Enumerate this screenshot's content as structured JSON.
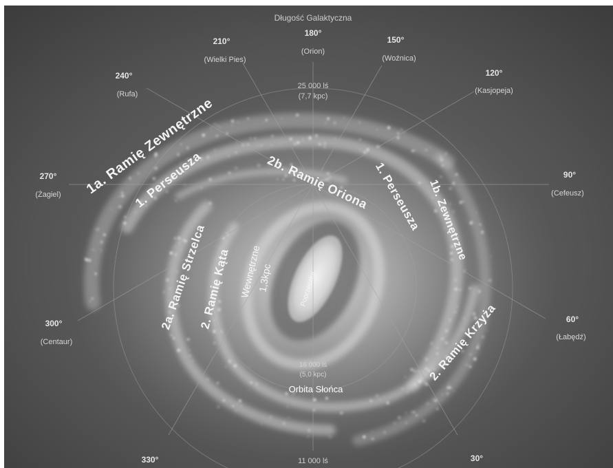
{
  "title": "Długość Galaktyczna",
  "longitude": {
    "l180": {
      "degree": "180°",
      "name": "(Orion)"
    },
    "l210": {
      "degree": "210°",
      "name": "(Wielki Pies)"
    },
    "l150": {
      "degree": "150°",
      "name": "(Woźnica)"
    },
    "l240": {
      "degree": "240°",
      "name": "(Rufa)"
    },
    "l120": {
      "degree": "120°",
      "name": "(Kasjopeja)"
    },
    "l270": {
      "degree": "270°",
      "name": "(Żagiel)"
    },
    "l90": {
      "degree": "90°",
      "name": "(Cefeusz)"
    },
    "l300": {
      "degree": "300°",
      "name": "(Centaur)"
    },
    "l60": {
      "degree": "60°",
      "name": "(Łabędź)"
    },
    "l330": {
      "degree": "330°"
    },
    "l30": {
      "degree": "30°"
    }
  },
  "distances": {
    "outer": {
      "ly": "25 000 lś",
      "kpc": "(7,7 kpc)"
    },
    "inner": {
      "ly": "16 000 lś",
      "kpc": "(5,0 kpc)"
    },
    "bottom": "11 000 lś"
  },
  "arms": {
    "outer_1a": "1a. Ramię Zewnętrzne",
    "perseus_left": "1. Perseusza",
    "orion_2b": "2b. Ramię Oriona",
    "perseus_right": "1. Perseusza",
    "outer_1b": "1b. Zewnętrzne",
    "sagittarius_2a": "2a. Ramię Strzelca",
    "arm_2_left": "2. Ramię Kąta",
    "crux_2": "2. Ramię Krzyża"
  },
  "core": {
    "inner_label": "Wewnętrzne",
    "inner_size": "1,3kpc",
    "bar": "Poprzeczka"
  },
  "sun_orbit": "Orbita Słońca"
}
